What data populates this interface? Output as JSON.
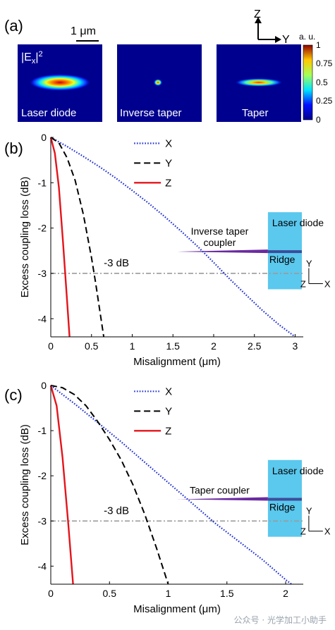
{
  "panel_a": {
    "label": "(a)",
    "scale_bar": "1 μm",
    "axes_z": "Z",
    "axes_y": "Y",
    "colorbar_unit": "a. u.",
    "colorbar_ticks": [
      "1",
      "0.75",
      "0.5",
      "0.25",
      "0"
    ],
    "field_label_base": "|E",
    "field_label_sub": "x",
    "field_label_tail": "|",
    "field_label_sup": "2",
    "maps": [
      "Laser diode",
      "Inverse taper",
      "Taper"
    ]
  },
  "chart_data": [
    {
      "type": "line",
      "panel_label": "(b)",
      "xlabel": "Misalignment (μm)",
      "ylabel": "Excess coupling loss (dB)",
      "xlim": [
        0,
        3.1
      ],
      "ylim": [
        -4.4,
        0
      ],
      "xticks": [
        "0",
        "0.5",
        "1",
        "1.5",
        "2",
        "2.5",
        "3"
      ],
      "yticks": [
        "0",
        "-1",
        "-2",
        "-3",
        "-4"
      ],
      "threshold": {
        "value": -3,
        "label": "-3 dB"
      },
      "legend": [
        "X",
        "Y",
        "Z"
      ],
      "series": [
        {
          "name": "X",
          "style": "dotted",
          "color": "#1f2fd6",
          "x": [
            0,
            0.2,
            0.4,
            0.6,
            0.8,
            1.0,
            1.2,
            1.4,
            1.6,
            1.8,
            2.0,
            2.2,
            2.4,
            2.6,
            2.8,
            3.0
          ],
          "y": [
            0,
            -0.2,
            -0.42,
            -0.65,
            -0.9,
            -1.17,
            -1.45,
            -1.75,
            -2.07,
            -2.4,
            -2.76,
            -3.13,
            -3.48,
            -3.82,
            -4.13,
            -4.4
          ]
        },
        {
          "name": "Y",
          "style": "dashed",
          "color": "#000000",
          "x": [
            0,
            0.1,
            0.2,
            0.3,
            0.4,
            0.5,
            0.55,
            0.6,
            0.65
          ],
          "y": [
            0,
            -0.12,
            -0.45,
            -0.95,
            -1.7,
            -2.65,
            -3.2,
            -3.8,
            -4.4
          ]
        },
        {
          "name": "Z",
          "style": "solid",
          "color": "#e5141b",
          "x": [
            0,
            0.05,
            0.1,
            0.15,
            0.2,
            0.23
          ],
          "y": [
            0,
            -0.35,
            -1.1,
            -2.3,
            -3.6,
            -4.4
          ]
        }
      ],
      "inset": {
        "coupler": "Inverse taper\ncoupler",
        "device": "Laser diode",
        "ridge": "Ridge",
        "ax_y": "Y",
        "ax_z": "Z",
        "ax_x": "X"
      }
    },
    {
      "type": "line",
      "panel_label": "(c)",
      "xlabel": "Misalignment (μm)",
      "ylabel": "Excess coupling loss (dB)",
      "xlim": [
        0,
        2.15
      ],
      "ylim": [
        -4.4,
        0
      ],
      "xticks": [
        "0",
        "0.5",
        "1",
        "1.5",
        "2"
      ],
      "yticks": [
        "0",
        "-1",
        "-2",
        "-3",
        "-4"
      ],
      "threshold": {
        "value": -3,
        "label": "-3 dB"
      },
      "legend": [
        "X",
        "Y",
        "Z"
      ],
      "series": [
        {
          "name": "X",
          "style": "dotted",
          "color": "#1f2fd6",
          "x": [
            0,
            0.2,
            0.4,
            0.6,
            0.8,
            1.0,
            1.2,
            1.4,
            1.6,
            1.8,
            2.0,
            2.05
          ],
          "y": [
            0,
            -0.4,
            -0.82,
            -1.25,
            -1.7,
            -2.15,
            -2.6,
            -3.05,
            -3.45,
            -3.85,
            -4.3,
            -4.4
          ]
        },
        {
          "name": "Y",
          "style": "dashed",
          "color": "#000000",
          "x": [
            0,
            0.1,
            0.2,
            0.3,
            0.4,
            0.5,
            0.6,
            0.7,
            0.8,
            0.9,
            1.0
          ],
          "y": [
            0,
            -0.05,
            -0.2,
            -0.45,
            -0.8,
            -1.2,
            -1.65,
            -2.2,
            -2.85,
            -3.6,
            -4.4
          ]
        },
        {
          "name": "Z",
          "style": "solid",
          "color": "#e5141b",
          "x": [
            0,
            0.05,
            0.1,
            0.15,
            0.19
          ],
          "y": [
            0,
            -0.45,
            -1.6,
            -3.1,
            -4.4
          ]
        }
      ],
      "inset": {
        "coupler": "Taper coupler",
        "device": "Laser diode",
        "ridge": "Ridge",
        "ax_y": "Y",
        "ax_z": "Z",
        "ax_x": "X"
      }
    }
  ],
  "watermark": "公众号 · 光学加工小助手"
}
